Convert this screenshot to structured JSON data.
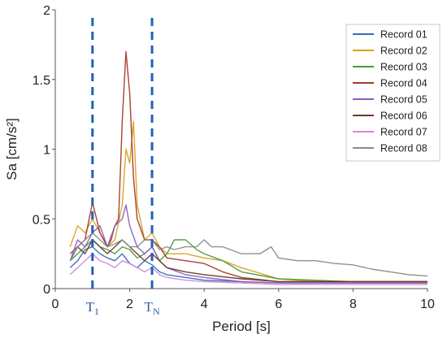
{
  "chart_data": {
    "type": "line",
    "xlabel": "Period [s]",
    "ylabel": "Sa [cm/s²]",
    "xlim": [
      0,
      10
    ],
    "ylim": [
      0,
      2
    ],
    "xticks": [
      "0",
      "2",
      "4",
      "6",
      "8",
      "10"
    ],
    "yticks": [
      "0",
      "0.5",
      "1",
      "1.5",
      "2"
    ],
    "grid": false,
    "legend_position": "top-right",
    "vlines": [
      {
        "x": 1.0,
        "label": "T",
        "subscript": "1",
        "color": "#2060b8"
      },
      {
        "x": 2.6,
        "label": "T",
        "subscript": "N",
        "color": "#2060b8"
      }
    ],
    "series": [
      {
        "name": "Record 01",
        "color": "#2c6fbb",
        "x": [
          0.4,
          0.6,
          0.8,
          1.0,
          1.2,
          1.4,
          1.6,
          1.8,
          2.0,
          2.2,
          2.4,
          2.6,
          2.8,
          3.0,
          3.5,
          4.0,
          5.0,
          6.0,
          8.0,
          10.0
        ],
        "y": [
          0.15,
          0.2,
          0.28,
          0.3,
          0.25,
          0.22,
          0.2,
          0.25,
          0.18,
          0.15,
          0.2,
          0.17,
          0.12,
          0.1,
          0.08,
          0.06,
          0.05,
          0.04,
          0.04,
          0.04
        ]
      },
      {
        "name": "Record 02",
        "color": "#d9a21b",
        "x": [
          0.4,
          0.6,
          0.8,
          1.0,
          1.2,
          1.4,
          1.6,
          1.8,
          1.9,
          2.0,
          2.1,
          2.2,
          2.4,
          2.6,
          2.8,
          3.0,
          3.5,
          4.0,
          4.5,
          5.0,
          6.0,
          7.0,
          8.0,
          10.0
        ],
        "y": [
          0.3,
          0.45,
          0.4,
          0.5,
          0.4,
          0.3,
          0.35,
          0.6,
          1.0,
          0.9,
          1.2,
          0.6,
          0.35,
          0.4,
          0.3,
          0.25,
          0.25,
          0.22,
          0.2,
          0.15,
          0.07,
          0.05,
          0.05,
          0.05
        ]
      },
      {
        "name": "Record 03",
        "color": "#4a9a3c",
        "x": [
          0.4,
          0.6,
          0.8,
          1.0,
          1.2,
          1.4,
          1.6,
          1.8,
          2.0,
          2.2,
          2.4,
          2.6,
          2.8,
          3.0,
          3.2,
          3.5,
          3.8,
          4.0,
          4.5,
          5.0,
          6.0,
          8.0,
          10.0
        ],
        "y": [
          0.2,
          0.25,
          0.3,
          0.35,
          0.3,
          0.28,
          0.25,
          0.3,
          0.28,
          0.22,
          0.25,
          0.3,
          0.2,
          0.25,
          0.35,
          0.35,
          0.28,
          0.25,
          0.2,
          0.12,
          0.07,
          0.05,
          0.05
        ]
      },
      {
        "name": "Record 04",
        "color": "#a33a2a",
        "x": [
          0.4,
          0.6,
          0.8,
          1.0,
          1.2,
          1.4,
          1.5,
          1.6,
          1.7,
          1.8,
          1.9,
          2.0,
          2.1,
          2.2,
          2.4,
          2.6,
          2.8,
          3.0,
          3.5,
          4.0,
          4.5,
          5.0,
          6.0,
          8.0,
          10.0
        ],
        "y": [
          0.25,
          0.3,
          0.35,
          0.62,
          0.4,
          0.3,
          0.35,
          0.45,
          0.5,
          1.2,
          1.7,
          1.4,
          0.8,
          0.5,
          0.35,
          0.35,
          0.3,
          0.22,
          0.2,
          0.18,
          0.12,
          0.08,
          0.05,
          0.05,
          0.05
        ]
      },
      {
        "name": "Record 05",
        "color": "#8a5cc0",
        "x": [
          0.4,
          0.6,
          0.8,
          1.0,
          1.2,
          1.4,
          1.6,
          1.8,
          1.9,
          2.0,
          2.2,
          2.4,
          2.6,
          2.8,
          3.0,
          3.5,
          4.0,
          5.0,
          6.0,
          8.0,
          10.0
        ],
        "y": [
          0.2,
          0.35,
          0.3,
          0.4,
          0.45,
          0.3,
          0.45,
          0.5,
          0.6,
          0.45,
          0.3,
          0.25,
          0.3,
          0.2,
          0.15,
          0.1,
          0.08,
          0.05,
          0.04,
          0.04,
          0.04
        ]
      },
      {
        "name": "Record 06",
        "color": "#6b3a25",
        "x": [
          0.4,
          0.6,
          0.8,
          1.0,
          1.2,
          1.4,
          1.6,
          1.8,
          2.0,
          2.2,
          2.4,
          2.6,
          2.8,
          3.0,
          3.5,
          4.0,
          5.0,
          6.0,
          8.0,
          10.0
        ],
        "y": [
          0.2,
          0.3,
          0.25,
          0.35,
          0.3,
          0.25,
          0.3,
          0.35,
          0.3,
          0.25,
          0.2,
          0.25,
          0.2,
          0.15,
          0.12,
          0.1,
          0.07,
          0.05,
          0.05,
          0.05
        ]
      },
      {
        "name": "Record 07",
        "color": "#d886d6",
        "x": [
          0.4,
          0.6,
          0.8,
          1.0,
          1.2,
          1.4,
          1.6,
          1.8,
          2.0,
          2.2,
          2.4,
          2.6,
          2.8,
          3.0,
          3.5,
          4.0,
          5.0,
          6.0,
          8.0,
          10.0
        ],
        "y": [
          0.1,
          0.15,
          0.2,
          0.25,
          0.2,
          0.18,
          0.15,
          0.2,
          0.18,
          0.15,
          0.12,
          0.15,
          0.1,
          0.08,
          0.06,
          0.05,
          0.04,
          0.03,
          0.03,
          0.03
        ]
      },
      {
        "name": "Record 08",
        "color": "#8a8a8a",
        "x": [
          0.4,
          0.6,
          0.8,
          1.0,
          1.2,
          1.4,
          1.6,
          1.8,
          2.0,
          2.2,
          2.4,
          2.6,
          2.8,
          3.0,
          3.2,
          3.5,
          3.8,
          4.0,
          4.2,
          4.5,
          5.0,
          5.5,
          5.8,
          6.0,
          6.5,
          7.0,
          7.5,
          8.0,
          8.5,
          9.0,
          9.5,
          10.0
        ],
        "y": [
          0.2,
          0.3,
          0.35,
          0.4,
          0.35,
          0.3,
          0.32,
          0.35,
          0.3,
          0.3,
          0.35,
          0.35,
          0.28,
          0.3,
          0.28,
          0.3,
          0.3,
          0.35,
          0.3,
          0.3,
          0.25,
          0.25,
          0.3,
          0.22,
          0.2,
          0.2,
          0.18,
          0.17,
          0.14,
          0.12,
          0.1,
          0.09
        ]
      }
    ]
  }
}
